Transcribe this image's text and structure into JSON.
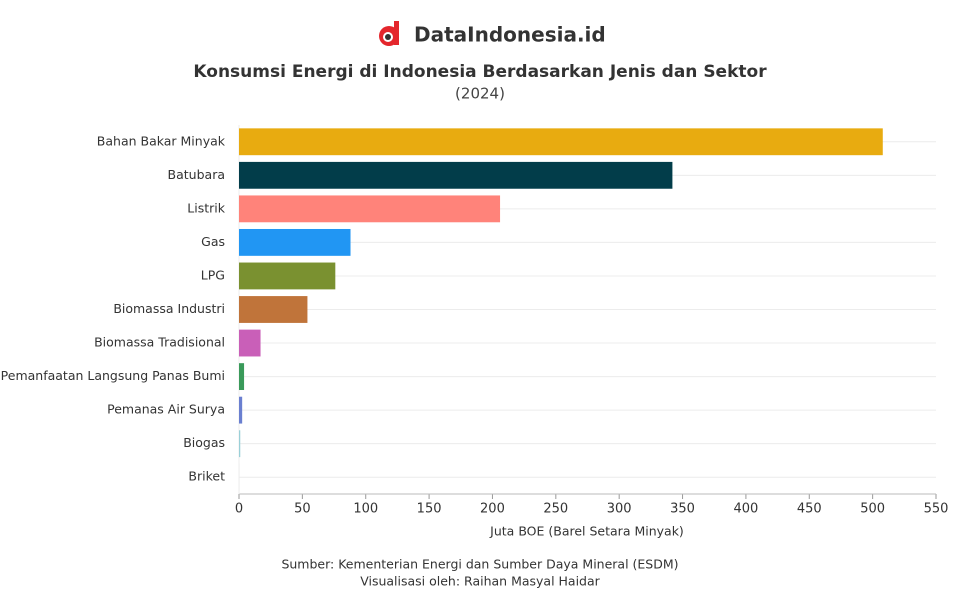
{
  "brand": "DataIndonesia.id",
  "chart_data": {
    "type": "bar",
    "orientation": "horizontal",
    "title": "Konsumsi Energi di Indonesia Berdasarkan Jenis dan Sektor",
    "subtitle": "(2024)",
    "x_label": "Juta BOE (Barel Setara Minyak)",
    "categories": [
      "Bahan Bakar Minyak",
      "Batubara",
      "Listrik",
      "Gas",
      "LPG",
      "Biomassa Industri",
      "Biomassa Tradisional",
      "Pemanfaatan Langsung Panas Bumi",
      "Pemanas Air Surya",
      "Biogas",
      "Briket"
    ],
    "values": [
      508,
      342,
      206,
      88,
      76,
      54,
      17,
      4,
      2.5,
      1,
      0.1
    ],
    "colors": [
      "#e8ab10",
      "#023d4a",
      "#ff837a",
      "#2196f3",
      "#7a9130",
      "#c0743a",
      "#c95fb8",
      "#3a9a5a",
      "#6a7fd0",
      "#9ad0d8",
      "#e0e0e0"
    ],
    "xlim": [
      0,
      550
    ],
    "xticks": [
      0,
      50,
      100,
      150,
      200,
      250,
      300,
      350,
      400,
      450,
      500,
      550
    ],
    "grid": true,
    "sources": [
      "Sumber: Kementerian Energi dan Sumber Daya Mineral (ESDM)",
      "Visualisasi oleh: Raihan Masyal Haidar"
    ]
  }
}
